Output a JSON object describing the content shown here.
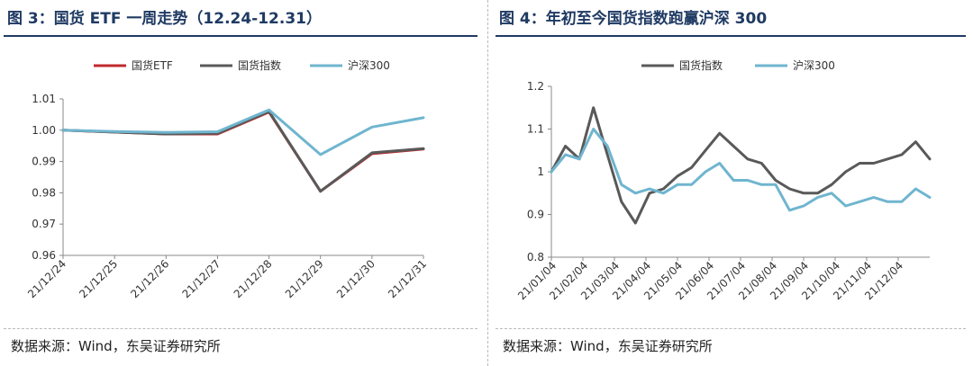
{
  "charts": [
    {
      "title": "图 3：国货 ETF 一周走势（12.24-12.31）",
      "source": "数据来源：Wind，东吴证券研究所"
    },
    {
      "title": "图 4：年初至今国货指数跑赢沪深 300",
      "source": "数据来源：Wind，东吴证券研究所"
    }
  ],
  "chart_data": [
    {
      "type": "line",
      "title": "图 3：国货 ETF 一周走势（12.24-12.31）",
      "xlabel": "",
      "ylabel": "",
      "x": [
        "21/12/24",
        "21/12/25",
        "21/12/26",
        "21/12/27",
        "21/12/28",
        "21/12/29",
        "21/12/30",
        "21/12/31"
      ],
      "ylim": [
        0.96,
        1.01
      ],
      "yticks": [
        0.96,
        0.97,
        0.98,
        0.99,
        1.0,
        1.01
      ],
      "ytick_labels": [
        "0.96",
        "0.97",
        "0.98",
        "0.99",
        "1.00",
        "1.01"
      ],
      "grid": false,
      "legend_position": "top",
      "series": [
        {
          "name": "国货ETF",
          "color": "#c0282d",
          "values": [
            1.0,
            0.9994,
            0.9988,
            0.9988,
            1.0058,
            0.9805,
            0.9925,
            0.994
          ]
        },
        {
          "name": "国货指数",
          "color": "#595959",
          "values": [
            1.0,
            0.9994,
            0.9988,
            0.999,
            1.006,
            0.9805,
            0.9928,
            0.9941
          ]
        },
        {
          "name": "沪深300",
          "color": "#6fb5cf",
          "values": [
            1.0,
            0.9996,
            0.9993,
            0.9995,
            1.0065,
            0.9922,
            1.001,
            1.004
          ]
        }
      ]
    },
    {
      "type": "line",
      "title": "图 4：年初至今国货指数跑赢沪深 300",
      "xlabel": "",
      "ylabel": "",
      "x": [
        "21/01/04",
        "21/01/18",
        "21/02/01",
        "21/02/15",
        "21/03/01",
        "21/03/08",
        "21/03/15",
        "21/03/22",
        "21/04/04",
        "21/04/18",
        "21/05/04",
        "21/05/18",
        "21/06/04",
        "21/06/18",
        "21/07/04",
        "21/07/18",
        "21/07/28",
        "21/08/04",
        "21/08/18",
        "21/09/04",
        "21/09/18",
        "21/10/04",
        "21/10/18",
        "21/11/04",
        "21/11/18",
        "21/12/04",
        "21/12/18",
        "21/12/31"
      ],
      "xtick_labels": [
        "21/01/04",
        "21/02/04",
        "21/03/04",
        "21/04/04",
        "21/05/04",
        "21/06/04",
        "21/07/04",
        "21/08/04",
        "21/09/04",
        "21/10/04",
        "21/11/04",
        "21/12/04"
      ],
      "ylim": [
        0.8,
        1.2
      ],
      "yticks": [
        0.8,
        0.9,
        1.0,
        1.1,
        1.2
      ],
      "ytick_labels": [
        "0.8",
        "0.9",
        "1",
        "1.1",
        "1.2"
      ],
      "grid": false,
      "legend_position": "top",
      "series": [
        {
          "name": "国货指数",
          "color": "#595959",
          "values": [
            1.0,
            1.06,
            1.03,
            1.15,
            1.04,
            0.93,
            0.88,
            0.95,
            0.96,
            0.99,
            1.01,
            1.05,
            1.09,
            1.06,
            1.03,
            1.02,
            0.98,
            0.96,
            0.95,
            0.95,
            0.97,
            1.0,
            1.02,
            1.02,
            1.03,
            1.04,
            1.07,
            1.03
          ]
        },
        {
          "name": "沪深300",
          "color": "#6fb5cf",
          "values": [
            1.0,
            1.04,
            1.03,
            1.1,
            1.06,
            0.97,
            0.95,
            0.96,
            0.95,
            0.97,
            0.97,
            1.0,
            1.02,
            0.98,
            0.98,
            0.97,
            0.97,
            0.91,
            0.92,
            0.94,
            0.95,
            0.92,
            0.93,
            0.94,
            0.93,
            0.93,
            0.96,
            0.94
          ]
        }
      ]
    }
  ]
}
